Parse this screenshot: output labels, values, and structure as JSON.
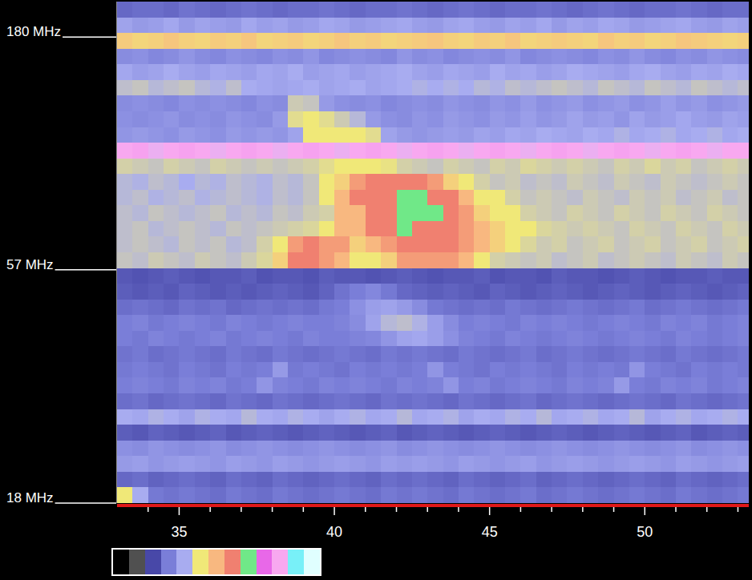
{
  "chart_data": {
    "type": "heatmap",
    "log": "y",
    "xlim": [
      33,
      53.35
    ],
    "ylim": [
      18,
      214.4
    ],
    "xticks": [
      35,
      40,
      45,
      50
    ],
    "minor_xticks": [
      34,
      36,
      37,
      38,
      39,
      41,
      42,
      43,
      44,
      46,
      47,
      48,
      49,
      51,
      52,
      53
    ],
    "yticks": [
      {
        "value": 180,
        "label": "180 MHz"
      },
      {
        "value": 57,
        "label": "57 MHz"
      },
      {
        "value": 18,
        "label": "18 MHz"
      }
    ],
    "x_edges": [
      33,
      33.5,
      34,
      34.5,
      35,
      35.5,
      36,
      36.5,
      37,
      37.5,
      38,
      38.5,
      39,
      39.5,
      40,
      40.5,
      41,
      41.5,
      42,
      42.5,
      43,
      43.5,
      44,
      44.5,
      45,
      45.5,
      46,
      46.5,
      47,
      47.5,
      48,
      48.5,
      49,
      49.5,
      50,
      50.5,
      51,
      51.5,
      52,
      52.5,
      53,
      53.35
    ],
    "y_edges": [
      214.4,
      198.4,
      183.7,
      170.0,
      157.3,
      145.6,
      134.7,
      124.7,
      115.4,
      106.8,
      98.86,
      91.49,
      84.68,
      78.37,
      72.53,
      67.13,
      62.12,
      57.5,
      53.21,
      49.25,
      45.58,
      42.18,
      39.04,
      36.13,
      33.44,
      30.95,
      28.64,
      26.51,
      24.53,
      22.71,
      21.01,
      19.45,
      18.0
    ],
    "cells": [
      [
        2.6,
        2.7,
        2.7,
        2.6,
        2.8,
        2.7,
        2.6,
        2.7,
        2.8,
        2.7,
        2.6,
        2.7,
        2.7,
        2.8,
        2.7,
        2.6,
        2.7,
        2.7,
        2.8,
        2.7,
        2.6,
        2.7,
        2.8,
        2.7,
        2.6,
        2.7,
        2.7,
        2.8,
        2.7,
        2.6,
        2.7,
        2.8,
        2.7,
        2.6,
        2.7,
        2.7,
        2.8,
        2.7,
        2.6,
        2.7,
        2.7
      ],
      [
        3.8,
        3.6,
        3.7,
        3.9,
        3.6,
        3.8,
        3.7,
        3.6,
        3.9,
        3.7,
        3.8,
        3.6,
        3.7,
        3.9,
        3.8,
        3.6,
        3.7,
        3.8,
        3.9,
        3.7,
        3.6,
        3.8,
        3.9,
        3.7,
        3.6,
        3.8,
        3.7,
        3.9,
        3.6,
        3.8,
        3.7,
        3.9,
        3.8,
        3.6,
        3.7,
        3.8,
        3.9,
        3.7,
        3.6,
        3.8,
        3.7
      ],
      [
        5.6,
        5.4,
        5.5,
        5.7,
        5.5,
        5.4,
        5.6,
        5.5,
        5.7,
        5.4,
        5.5,
        5.6,
        5.4,
        5.5,
        5.7,
        5.5,
        5.6,
        5.4,
        5.5,
        5.6,
        5.7,
        5.5,
        5.4,
        5.6,
        5.5,
        5.7,
        5.4,
        5.5,
        5.6,
        5.5,
        5.4,
        5.7,
        5.5,
        5.6,
        5.4,
        5.5,
        5.7,
        5.6,
        5.5,
        5.4,
        5.5
      ],
      [
        3.3,
        3.4,
        3.2,
        3.3,
        3.5,
        3.3,
        3.2,
        3.4,
        3.3,
        3.2,
        3.4,
        3.3,
        3.5,
        3.2,
        3.3,
        3.4,
        3.3,
        3.2,
        3.5,
        3.3,
        3.4,
        3.2,
        3.3,
        3.4,
        3.3,
        3.5,
        3.2,
        3.3,
        3.4,
        3.3,
        3.2,
        3.4,
        3.3,
        3.5,
        3.3,
        3.2,
        3.4,
        3.3,
        3.5,
        3.4,
        3.3
      ],
      [
        3.9,
        3.7,
        3.8,
        4.0,
        3.8,
        3.7,
        3.9,
        3.8,
        3.7,
        3.9,
        3.8,
        4.0,
        3.7,
        3.8,
        3.9,
        3.7,
        3.8,
        3.9,
        4.0,
        3.8,
        3.7,
        3.9,
        3.8,
        3.7,
        4.0,
        3.8,
        3.9,
        3.7,
        3.8,
        4.0,
        3.9,
        3.8,
        3.7,
        3.9,
        4.0,
        3.8,
        3.7,
        3.9,
        3.8,
        4.0,
        3.9
      ],
      [
        4.3,
        4.4,
        4.2,
        4.3,
        4.4,
        4.2,
        4.1,
        4.3,
        4.0,
        3.9,
        3.8,
        3.9,
        4.0,
        3.8,
        3.9,
        4.0,
        3.8,
        3.9,
        4.0,
        4.1,
        4.0,
        4.1,
        4.0,
        4.2,
        4.1,
        4.3,
        4.2,
        4.3,
        4.4,
        4.3,
        4.2,
        4.4,
        4.3,
        4.2,
        4.4,
        4.3,
        4.2,
        4.4,
        4.3,
        4.2,
        4.3
      ],
      [
        3.3,
        3.4,
        3.3,
        3.2,
        3.4,
        3.3,
        3.4,
        3.3,
        3.2,
        3.4,
        3.3,
        4.5,
        4.4,
        3.6,
        3.4,
        3.3,
        3.4,
        3.2,
        3.3,
        3.4,
        3.3,
        3.5,
        3.4,
        3.3,
        3.5,
        3.4,
        3.6,
        3.4,
        3.5,
        3.6,
        3.4,
        3.5,
        3.6,
        3.4,
        3.5,
        3.7,
        3.5,
        3.6,
        3.4,
        3.5,
        3.6
      ],
      [
        3.4,
        3.3,
        3.4,
        3.5,
        3.3,
        3.4,
        3.3,
        3.5,
        3.4,
        3.3,
        3.6,
        4.8,
        5.0,
        4.8,
        4.5,
        4.2,
        3.6,
        3.4,
        3.3,
        3.5,
        3.4,
        3.6,
        3.5,
        3.4,
        3.6,
        3.5,
        3.7,
        3.5,
        3.6,
        3.8,
        3.6,
        3.7,
        3.5,
        3.8,
        3.6,
        3.7,
        3.9,
        3.7,
        3.6,
        3.8,
        3.7
      ],
      [
        3.5,
        3.6,
        3.5,
        3.4,
        3.6,
        3.5,
        3.4,
        3.6,
        3.5,
        3.6,
        3.5,
        3.8,
        5.0,
        5.0,
        5.0,
        5.0,
        4.8,
        3.8,
        3.6,
        3.5,
        3.6,
        3.7,
        3.6,
        3.8,
        3.7,
        3.9,
        3.8,
        4.0,
        3.9,
        3.8,
        4.0,
        3.9,
        4.1,
        3.9,
        4.0,
        4.1,
        3.9,
        4.0,
        4.1,
        3.9,
        4.0
      ],
      [
        10.0,
        9.9,
        10.1,
        10.0,
        9.9,
        10.0,
        10.1,
        10.0,
        9.9,
        10.0,
        10.1,
        10.0,
        9.9,
        10.0,
        10.1,
        10.0,
        9.9,
        10.0,
        10.1,
        10.0,
        9.9,
        10.0,
        10.1,
        10.0,
        9.9,
        10.0,
        10.1,
        10.0,
        9.9,
        10.0,
        10.1,
        10.0,
        9.9,
        10.0,
        10.1,
        10.0,
        9.9,
        10.0,
        10.1,
        10.0,
        10.0
      ],
      [
        4.6,
        4.5,
        4.4,
        4.6,
        4.5,
        4.4,
        4.6,
        4.5,
        4.4,
        4.5,
        4.4,
        4.5,
        4.6,
        4.8,
        5.0,
        5.0,
        5.0,
        4.9,
        4.6,
        4.5,
        4.4,
        4.6,
        4.5,
        4.4,
        4.6,
        4.5,
        4.7,
        4.6,
        4.5,
        4.6,
        4.5,
        4.4,
        4.6,
        4.5,
        4.7,
        4.5,
        4.6,
        4.4,
        4.5,
        4.6,
        4.5
      ],
      [
        4.2,
        4.1,
        4.3,
        4.2,
        4.0,
        4.2,
        4.1,
        4.3,
        4.2,
        4.1,
        4.3,
        4.2,
        4.4,
        5.0,
        5.5,
        6.5,
        7.0,
        7.0,
        7.0,
        7.0,
        6.5,
        5.5,
        5.0,
        4.6,
        4.4,
        4.5,
        4.3,
        4.4,
        4.3,
        4.5,
        4.4,
        4.3,
        4.5,
        4.4,
        4.3,
        4.5,
        4.4,
        4.3,
        4.4,
        4.5,
        4.4
      ],
      [
        4.2,
        4.3,
        4.1,
        4.2,
        4.3,
        4.1,
        4.2,
        4.3,
        4.2,
        4.1,
        4.3,
        4.2,
        4.4,
        5.0,
        6.0,
        7.0,
        7.0,
        7.0,
        8.0,
        8.0,
        7.0,
        7.0,
        6.0,
        5.0,
        5.0,
        4.6,
        4.4,
        4.5,
        4.4,
        4.3,
        4.5,
        4.4,
        4.3,
        4.5,
        4.4,
        4.5,
        4.3,
        4.4,
        4.5,
        4.3,
        4.4
      ],
      [
        4.3,
        4.2,
        4.4,
        4.3,
        4.2,
        4.3,
        4.4,
        4.2,
        4.3,
        4.2,
        4.4,
        4.3,
        4.5,
        4.6,
        6.0,
        6.0,
        7.0,
        7.0,
        8.0,
        8.0,
        8.0,
        7.0,
        6.5,
        5.5,
        5.0,
        5.0,
        4.6,
        4.5,
        4.4,
        4.6,
        4.5,
        4.4,
        4.6,
        4.5,
        4.4,
        4.6,
        4.5,
        4.4,
        4.6,
        4.5,
        4.4
      ],
      [
        4.3,
        4.4,
        4.2,
        4.3,
        4.4,
        4.3,
        4.2,
        4.4,
        4.3,
        4.4,
        4.5,
        4.6,
        4.7,
        5.0,
        6.0,
        6.0,
        7.0,
        7.0,
        8.0,
        7.0,
        7.0,
        7.0,
        6.5,
        6.0,
        5.5,
        5.0,
        5.0,
        4.7,
        4.6,
        4.5,
        4.6,
        4.5,
        4.4,
        4.6,
        4.5,
        4.4,
        4.6,
        4.5,
        4.4,
        4.6,
        4.5
      ],
      [
        4.3,
        4.4,
        4.3,
        4.2,
        4.4,
        4.3,
        4.4,
        4.2,
        4.3,
        4.6,
        5.0,
        6.5,
        7.0,
        6.5,
        6.5,
        5.5,
        6.0,
        6.5,
        7.0,
        7.0,
        7.0,
        7.0,
        6.5,
        6.0,
        5.5,
        5.0,
        4.7,
        4.5,
        4.6,
        4.4,
        4.5,
        4.6,
        4.4,
        4.5,
        4.6,
        4.4,
        4.5,
        4.6,
        4.4,
        4.5,
        4.6
      ],
      [
        4.4,
        4.3,
        4.5,
        4.4,
        4.3,
        4.5,
        4.4,
        4.3,
        4.5,
        4.7,
        5.5,
        7.0,
        7.0,
        6.5,
        6.0,
        5.0,
        5.0,
        5.5,
        6.5,
        6.5,
        6.5,
        6.5,
        6.0,
        5.0,
        4.6,
        4.5,
        4.4,
        4.5,
        4.3,
        4.4,
        4.5,
        4.3,
        4.4,
        4.5,
        4.4,
        4.3,
        4.5,
        4.4,
        4.3,
        4.5,
        4.4
      ],
      [
        2.3,
        2.2,
        2.3,
        2.4,
        2.3,
        2.2,
        2.3,
        2.3,
        2.4,
        2.2,
        2.3,
        2.3,
        2.2,
        2.4,
        2.3,
        2.3,
        2.2,
        2.3,
        2.4,
        2.3,
        2.2,
        2.3,
        2.3,
        2.4,
        2.2,
        2.3,
        2.3,
        2.2,
        2.4,
        2.3,
        2.3,
        2.2,
        2.3,
        2.4,
        2.3,
        2.2,
        2.3,
        2.3,
        2.4,
        2.3,
        2.3
      ],
      [
        2.4,
        2.3,
        2.4,
        2.3,
        2.5,
        2.4,
        2.3,
        2.4,
        2.3,
        2.4,
        2.5,
        2.4,
        2.3,
        2.5,
        2.8,
        3.0,
        3.2,
        2.9,
        2.6,
        2.5,
        2.4,
        2.5,
        2.4,
        2.3,
        2.5,
        2.4,
        2.3,
        2.4,
        2.5,
        2.4,
        2.3,
        2.4,
        2.5,
        2.4,
        2.3,
        2.4,
        2.5,
        2.4,
        2.3,
        2.4,
        2.5
      ],
      [
        2.7,
        2.8,
        2.7,
        2.6,
        2.8,
        2.7,
        2.8,
        2.6,
        2.7,
        2.8,
        2.7,
        2.8,
        2.7,
        2.9,
        3.0,
        3.4,
        3.7,
        3.8,
        3.6,
        3.3,
        2.9,
        2.8,
        2.7,
        2.8,
        2.7,
        2.9,
        2.8,
        2.7,
        2.8,
        2.9,
        2.8,
        2.7,
        2.8,
        2.9,
        2.7,
        2.8,
        2.9,
        2.8,
        2.7,
        2.8,
        2.9
      ],
      [
        3.0,
        3.1,
        2.9,
        3.0,
        3.1,
        3.0,
        2.9,
        3.1,
        3.0,
        2.9,
        3.0,
        3.1,
        3.0,
        3.0,
        3.1,
        3.3,
        3.8,
        4.2,
        4.3,
        4.1,
        3.7,
        3.3,
        3.0,
        3.1,
        3.0,
        2.9,
        3.1,
        3.0,
        3.1,
        3.0,
        2.9,
        3.0,
        3.1,
        3.0,
        2.9,
        3.1,
        3.0,
        3.1,
        2.9,
        3.0,
        3.1
      ],
      [
        3.0,
        2.9,
        3.1,
        3.0,
        2.9,
        3.0,
        3.1,
        2.9,
        3.0,
        3.1,
        3.0,
        2.9,
        3.1,
        3.0,
        3.0,
        3.1,
        3.2,
        3.5,
        3.8,
        3.9,
        3.7,
        3.4,
        3.1,
        3.0,
        2.9,
        3.1,
        3.0,
        2.9,
        3.0,
        3.1,
        3.0,
        2.9,
        3.0,
        3.1,
        3.0,
        2.9,
        3.1,
        3.0,
        2.9,
        3.0,
        3.1
      ],
      [
        2.8,
        2.9,
        2.7,
        2.8,
        2.9,
        2.8,
        2.7,
        2.9,
        2.8,
        2.7,
        2.9,
        2.8,
        2.7,
        2.8,
        2.9,
        2.8,
        2.7,
        2.9,
        2.8,
        2.9,
        2.8,
        2.7,
        2.9,
        2.8,
        2.7,
        2.8,
        2.9,
        2.7,
        2.8,
        2.9,
        2.8,
        2.7,
        2.8,
        2.9,
        2.8,
        2.7,
        2.9,
        2.8,
        2.7,
        2.8,
        2.9
      ],
      [
        2.9,
        3.0,
        2.9,
        2.8,
        3.0,
        2.9,
        2.8,
        3.0,
        2.9,
        3.0,
        3.6,
        2.9,
        3.0,
        2.9,
        2.8,
        3.0,
        2.9,
        3.0,
        2.9,
        3.0,
        3.5,
        3.0,
        2.9,
        2.8,
        3.0,
        2.9,
        3.0,
        2.9,
        2.8,
        3.0,
        2.9,
        3.0,
        2.9,
        3.5,
        3.0,
        2.9,
        2.8,
        3.0,
        2.9,
        3.0,
        2.9
      ],
      [
        3.0,
        3.1,
        3.0,
        2.9,
        3.1,
        3.0,
        3.1,
        2.9,
        3.0,
        3.5,
        3.1,
        3.0,
        2.9,
        3.1,
        3.0,
        3.1,
        3.0,
        2.9,
        3.1,
        3.0,
        3.1,
        3.5,
        3.0,
        3.1,
        2.9,
        3.0,
        3.1,
        3.0,
        2.9,
        3.1,
        3.0,
        3.1,
        3.6,
        3.0,
        2.9,
        3.1,
        3.0,
        3.1,
        2.9,
        3.0,
        3.1
      ],
      [
        2.7,
        2.8,
        2.6,
        2.7,
        2.8,
        2.7,
        2.6,
        2.8,
        2.7,
        2.6,
        2.8,
        2.7,
        2.6,
        2.7,
        2.8,
        2.7,
        2.6,
        2.8,
        2.7,
        2.8,
        2.7,
        2.6,
        2.8,
        2.7,
        2.6,
        2.7,
        2.8,
        2.6,
        2.7,
        2.8,
        2.7,
        2.6,
        2.7,
        2.8,
        2.7,
        2.6,
        2.8,
        2.7,
        2.6,
        2.7,
        2.8
      ],
      [
        4.0,
        3.9,
        4.1,
        4.0,
        3.8,
        4.1,
        4.0,
        3.9,
        4.2,
        4.0,
        3.9,
        4.1,
        4.0,
        3.8,
        4.0,
        4.1,
        3.9,
        4.0,
        4.2,
        3.9,
        4.0,
        4.1,
        3.8,
        4.0,
        3.9,
        4.1,
        4.0,
        4.2,
        3.9,
        4.0,
        4.1,
        3.9,
        4.0,
        4.2,
        3.8,
        4.0,
        4.1,
        3.9,
        4.0,
        4.1,
        4.0
      ],
      [
        2.4,
        2.3,
        2.5,
        2.4,
        2.3,
        2.4,
        2.5,
        2.3,
        2.4,
        2.5,
        2.4,
        2.3,
        2.4,
        2.5,
        2.4,
        2.3,
        2.4,
        2.5,
        2.3,
        2.4,
        2.5,
        2.4,
        2.3,
        2.4,
        2.5,
        2.4,
        2.3,
        2.4,
        2.5,
        2.4,
        2.3,
        2.4,
        2.5,
        2.4,
        2.3,
        2.4,
        2.5,
        2.3,
        2.4,
        2.5,
        2.4
      ],
      [
        3.4,
        3.3,
        3.5,
        3.4,
        3.3,
        3.4,
        3.5,
        3.3,
        3.4,
        3.5,
        3.4,
        3.3,
        3.4,
        3.5,
        3.4,
        3.3,
        3.4,
        3.5,
        3.3,
        3.4,
        3.5,
        3.4,
        3.3,
        3.4,
        3.5,
        3.4,
        3.3,
        3.4,
        3.5,
        3.4,
        3.3,
        3.4,
        3.5,
        3.4,
        3.3,
        3.4,
        3.5,
        3.3,
        3.4,
        3.5,
        3.4
      ],
      [
        3.6,
        3.7,
        3.5,
        3.6,
        3.7,
        3.6,
        3.5,
        3.7,
        3.6,
        3.5,
        3.7,
        3.6,
        3.5,
        3.6,
        3.7,
        3.6,
        3.5,
        3.7,
        3.6,
        3.7,
        3.6,
        3.5,
        3.7,
        3.6,
        3.5,
        3.6,
        3.7,
        3.5,
        3.6,
        3.7,
        3.6,
        3.5,
        3.6,
        3.7,
        3.6,
        3.5,
        3.7,
        3.6,
        3.5,
        3.6,
        3.7
      ],
      [
        2.6,
        2.7,
        2.5,
        2.6,
        2.7,
        2.6,
        2.5,
        2.7,
        2.6,
        2.5,
        2.7,
        2.6,
        2.5,
        2.6,
        2.7,
        2.6,
        2.5,
        2.7,
        2.6,
        2.7,
        2.6,
        2.5,
        2.7,
        2.6,
        2.5,
        2.6,
        2.7,
        2.5,
        2.6,
        2.7,
        2.6,
        2.5,
        2.6,
        2.7,
        2.6,
        2.5,
        2.7,
        2.6,
        2.5,
        2.6,
        2.7
      ],
      [
        5.0,
        4.0,
        2.9,
        2.8,
        2.9,
        2.8,
        2.7,
        2.9,
        2.8,
        2.7,
        2.9,
        2.8,
        2.7,
        2.8,
        2.9,
        2.8,
        2.7,
        2.9,
        2.8,
        2.9,
        2.8,
        2.7,
        2.9,
        2.8,
        2.7,
        2.8,
        2.9,
        2.7,
        2.8,
        2.9,
        2.8,
        2.7,
        2.8,
        2.9,
        2.8,
        2.7,
        2.9,
        2.8,
        2.7,
        2.8,
        2.9
      ]
    ],
    "colorbar": {
      "range": [
        0,
        12
      ],
      "colors": [
        "#000000",
        "#505050",
        "#4848a8",
        "#7a7ed8",
        "#a8acf0",
        "#f0e878",
        "#f8b880",
        "#f08070",
        "#70e888",
        "#e868e8",
        "#f8a8f0",
        "#78f0f8",
        "#e0ffff"
      ]
    }
  }
}
